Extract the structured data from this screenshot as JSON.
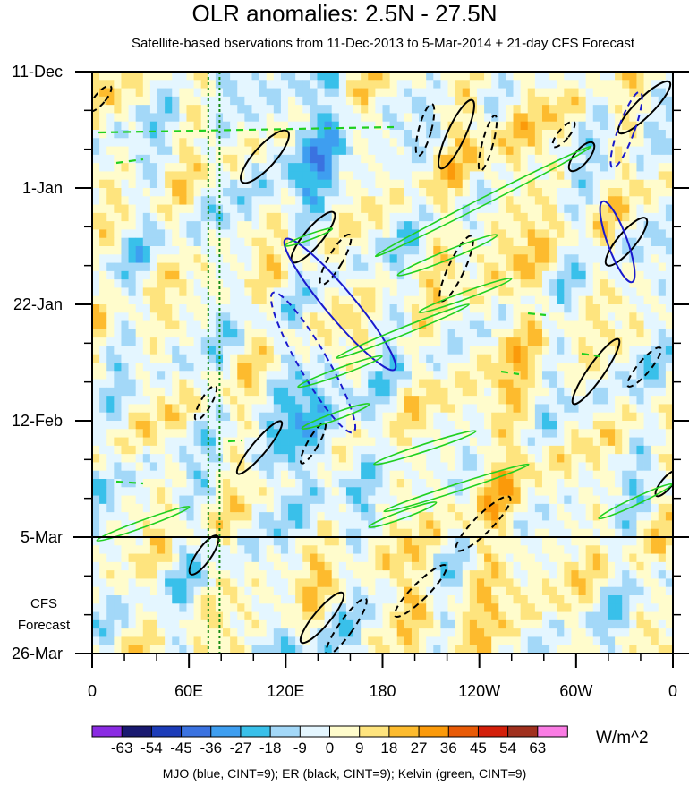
{
  "chart_data": {
    "type": "heatmap",
    "title": "OLR anomalies: 2.5N - 27.5N",
    "subtitle": "Satellite-based bservations from 11-Dec-2013 to 5-Mar-2014 + 21-day CFS Forecast",
    "x_tick_labels": [
      "0",
      "60E",
      "120E",
      "180",
      "120W",
      "60W",
      "0"
    ],
    "x_ticks_deg_east": [
      0,
      60,
      120,
      180,
      240,
      300,
      360
    ],
    "y_tick_labels": [
      "11-Dec",
      "1-Jan",
      "22-Jan",
      "12-Feb",
      "5-Mar",
      "26-Mar"
    ],
    "y_ticks_dates": [
      "2013-12-11",
      "2014-01-01",
      "2014-01-22",
      "2014-02-12",
      "2014-03-05",
      "2014-03-26"
    ],
    "observation_end": "5-Mar",
    "forecast_label": [
      "CFS",
      "Forecast"
    ],
    "reference_longitudes_deg_east": [
      72,
      79
    ],
    "colorbar": {
      "labels": [
        "-63",
        "-54",
        "-45",
        "-36",
        "-27",
        "-18",
        "-9",
        "0",
        "9",
        "18",
        "27",
        "36",
        "45",
        "54",
        "63"
      ],
      "colors": [
        "#8a2be2",
        "#191970",
        "#1c3cb8",
        "#3a72e0",
        "#3e9ef0",
        "#39c0ea",
        "#a3d8f8",
        "#e4f6ff",
        "#fffccc",
        "#fee47e",
        "#fdbb2e",
        "#fb9a0a",
        "#e85a06",
        "#d31f0a",
        "#a0301e",
        "#fa7ce4"
      ],
      "units": "W/m^2"
    },
    "contour_legend": "MJO (blue, CINT=9); ER (black, CINT=9); Kelvin (green, CINT=9)",
    "contour_colors": {
      "MJO": "#1a1acd",
      "ER": "#000000",
      "Kelvin": "#20d020",
      "reference": "#138a13"
    }
  }
}
